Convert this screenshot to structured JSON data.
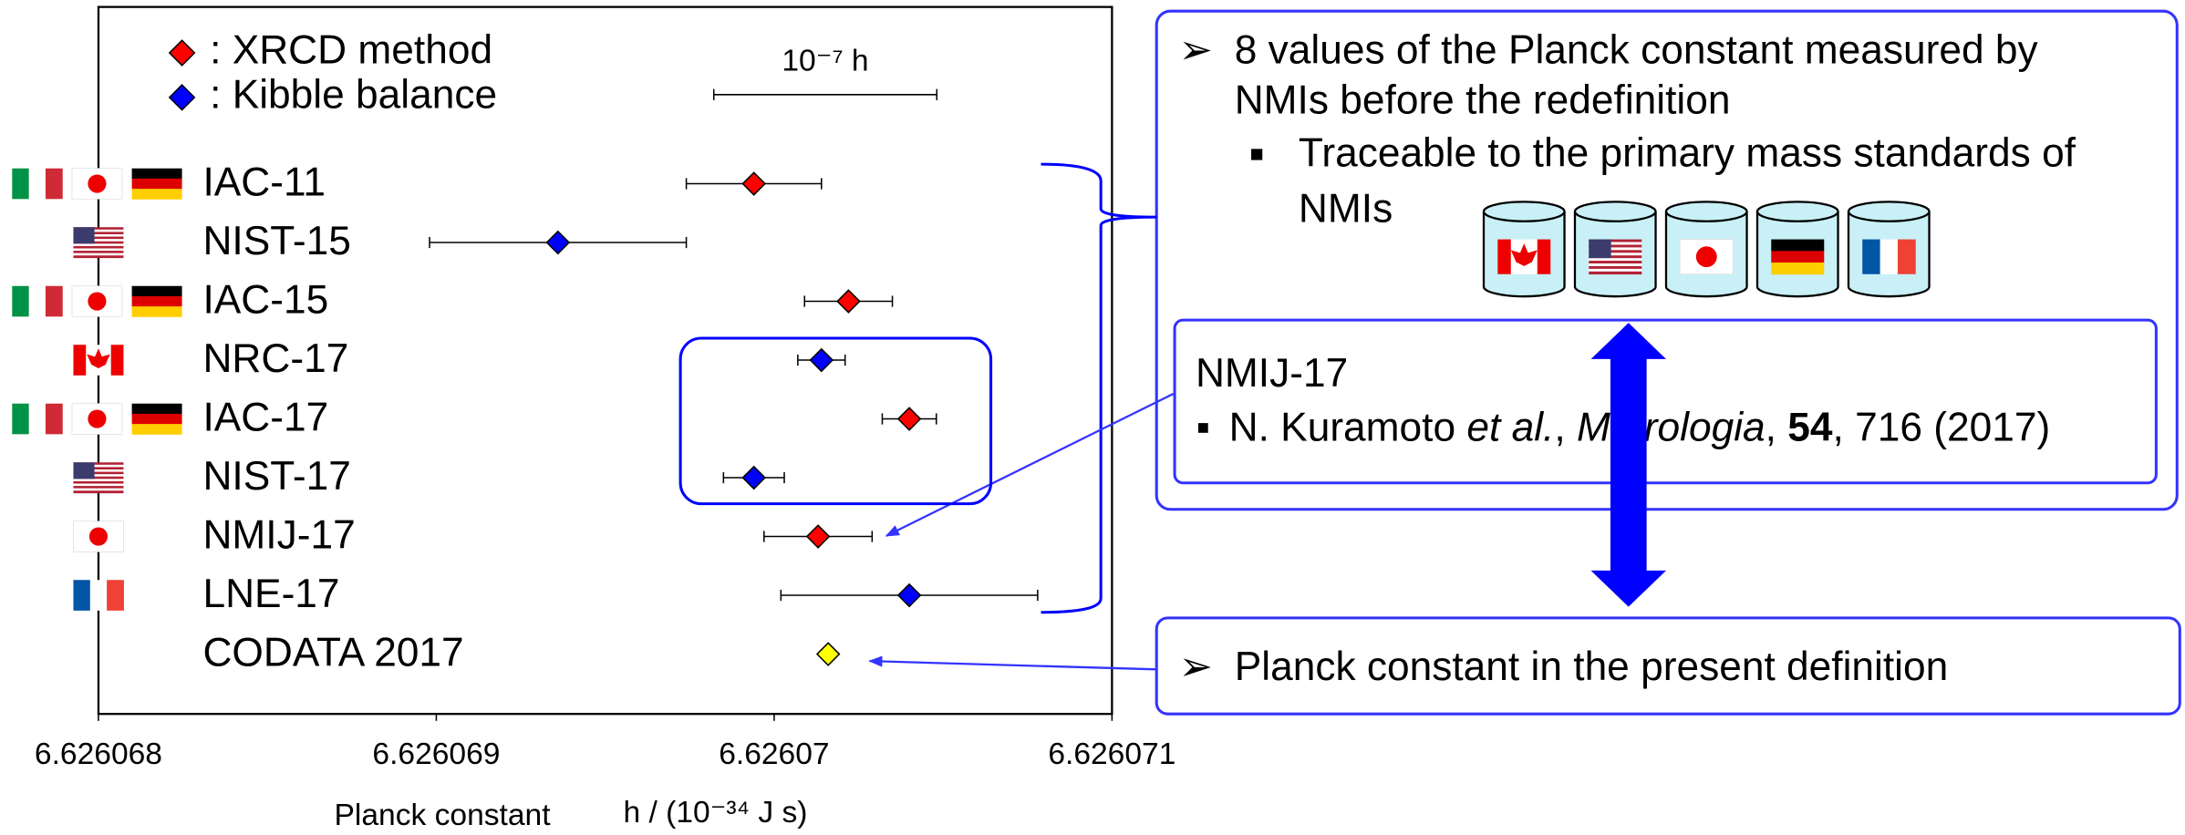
{
  "chart_data": {
    "type": "errorbar",
    "categories": [
      "IAC-11",
      "NIST-15",
      "IAC-15",
      "NRC-17",
      "IAC-17",
      "NIST-17",
      "NMIJ-17",
      "LNE-17",
      "CODATA 2017"
    ],
    "series": [
      {
        "name": ": XRCD method",
        "color": "#ff0000",
        "values": [
          6.62606994,
          null,
          6.62607022,
          null,
          6.6260704,
          null,
          6.62607013,
          null,
          null
        ],
        "errors": [
          2e-07,
          null,
          1.3e-07,
          null,
          8e-08,
          null,
          1.6e-07,
          null,
          null
        ]
      },
      {
        "name": ": Kibble balance",
        "color": "#0000ff",
        "values": [
          null,
          6.62606936,
          null,
          6.62607014,
          null,
          6.62606994,
          null,
          6.6260704,
          null
        ],
        "errors": [
          null,
          3.8e-07,
          null,
          7e-08,
          null,
          9e-08,
          null,
          3.8e-07,
          null
        ]
      },
      {
        "color": "#ffff00",
        "values": [
          null,
          null,
          null,
          null,
          null,
          null,
          null,
          null,
          6.62607016
        ]
      }
    ],
    "xlim": [
      6.626068,
      6.626071
    ],
    "xticks": [
      6.626068,
      6.626069,
      6.62607,
      6.626071
    ],
    "xlabel": "Planck constant",
    "xlabel_unit": "h / (10⁻³⁴ J s)",
    "scale_bar": {
      "label": "10⁻⁷ h",
      "length": 6.6e-07
    }
  },
  "panels": {
    "summary": {
      "lines": [
        "8 values of the Planck constant measured by",
        "NMIs before the redefinition"
      ],
      "sub_lines": [
        "Traceable to the primary mass standards of",
        "NMIs"
      ]
    },
    "reference": {
      "title": "NMIJ-17",
      "parts": [
        "N. Kuramoto ",
        "et al.",
        ", ",
        "Metrologia",
        ", ",
        "54",
        ", 716 (2017)"
      ]
    },
    "definition": {
      "text": "Planck constant in the present definition"
    }
  }
}
